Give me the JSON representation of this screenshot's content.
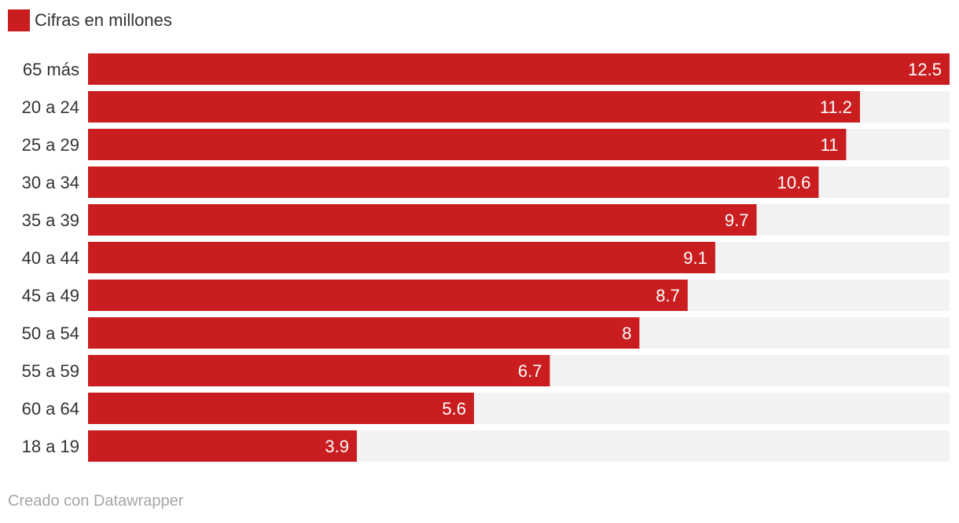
{
  "legend": {
    "label": "Cifras en millones",
    "color": "#c91d1f"
  },
  "colors": {
    "bar": "#c91d1f",
    "track": "#f2f2f2",
    "value_text": "#ffffff",
    "category_text": "#333333"
  },
  "chart_data": {
    "type": "bar",
    "orientation": "horizontal",
    "categories": [
      "65 más",
      "20 a 24",
      "25 a 29",
      "30 a 34",
      "35 a 39",
      "40 a 44",
      "45 a 49",
      "50 a 54",
      "55 a 59",
      "60 a 64",
      "18 a 19"
    ],
    "values": [
      12.5,
      11.2,
      11,
      10.6,
      9.7,
      9.1,
      8.7,
      8,
      6.7,
      5.6,
      3.9
    ],
    "value_labels": [
      "12.5",
      "11.2",
      "11",
      "10.6",
      "9.7",
      "9.1",
      "8.7",
      "8",
      "6.7",
      "5.6",
      "3.9"
    ],
    "xlim": [
      0,
      12.5
    ],
    "grid": false,
    "legend_position": "top-left"
  },
  "footer": {
    "credit": "Creado con Datawrapper"
  }
}
